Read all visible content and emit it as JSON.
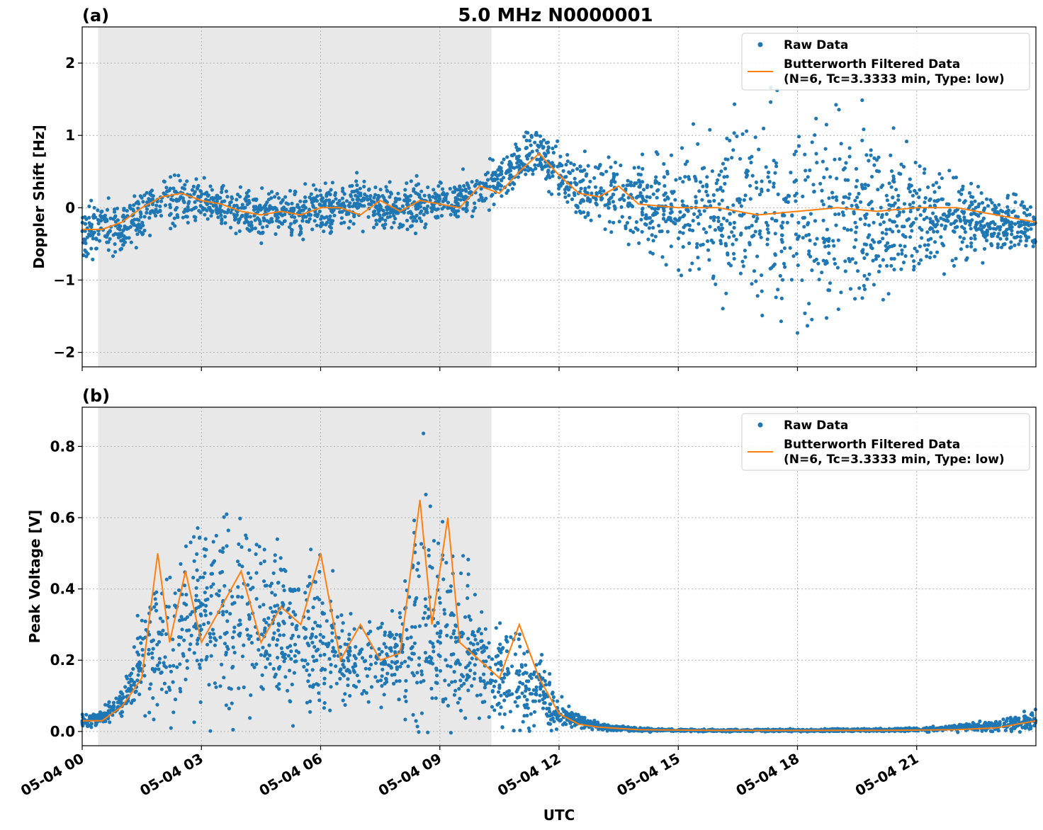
{
  "figure": {
    "title": "5.0 MHz N0000001",
    "xlabel": "UTC",
    "x_ticks": [
      "05-04 00",
      "05-04 03",
      "05-04 06",
      "05-04 09",
      "05-04 12",
      "05-04 15",
      "05-04 18",
      "05-04 21"
    ],
    "colors": {
      "raw": "#1f77b4",
      "filtered": "#ff7f0e",
      "shade": "#e8e8e8",
      "grid": "#b0b0b0"
    }
  },
  "chart_data": [
    {
      "panel": "(a)",
      "type": "scatter",
      "ylabel": "Doppler Shift [Hz]",
      "xlim_hours": [
        0,
        24
      ],
      "ylim": [
        -2.2,
        2.5
      ],
      "y_ticks": [
        2,
        1,
        0,
        -1,
        -2
      ],
      "y_tick_labels": [
        "2",
        "1",
        "0",
        "−1",
        "−2"
      ],
      "shaded_interval_hours": [
        0.4,
        10.3
      ],
      "grid": true,
      "legend_placement": "top-right",
      "legend": [
        "Raw Data",
        "Butterworth Filtered Data",
        "(N=6, Tc=3.3333 min, Type: low)"
      ],
      "series": [
        {
          "name": "Raw Data",
          "style": "points",
          "x_hours": [
            0,
            1,
            2,
            3,
            4,
            5,
            6,
            7,
            8,
            9,
            10,
            11,
            11.5,
            12,
            13,
            14,
            15,
            16,
            17,
            18,
            19,
            20,
            21,
            22,
            23,
            24
          ],
          "y_center": [
            -0.3,
            -0.3,
            0.1,
            0.1,
            -0.1,
            -0.1,
            0.0,
            0.05,
            0.0,
            0.1,
            0.2,
            0.6,
            0.8,
            0.4,
            0.2,
            0.1,
            0.0,
            -0.1,
            -0.1,
            -0.1,
            -0.1,
            -0.1,
            -0.1,
            -0.1,
            -0.2,
            -0.3
          ],
          "y_spread": [
            0.35,
            0.35,
            0.35,
            0.3,
            0.3,
            0.3,
            0.3,
            0.3,
            0.3,
            0.3,
            0.3,
            0.3,
            0.3,
            0.35,
            0.45,
            0.6,
            0.8,
            1.0,
            1.2,
            1.3,
            1.3,
            1.1,
            0.8,
            0.6,
            0.4,
            0.35
          ]
        },
        {
          "name": "Butterworth Filtered Data",
          "style": "line",
          "x_hours": [
            0,
            0.5,
            1,
            1.5,
            2,
            2.5,
            3,
            3.5,
            4,
            4.5,
            5,
            5.5,
            6,
            6.5,
            7,
            7.5,
            8,
            8.5,
            9,
            9.5,
            10,
            10.5,
            11,
            11.5,
            12,
            12.5,
            13,
            13.5,
            14,
            15,
            16,
            17,
            18,
            19,
            20,
            21,
            22,
            23,
            24
          ],
          "y": [
            -0.3,
            -0.3,
            -0.2,
            0.0,
            0.15,
            0.2,
            0.1,
            0.05,
            -0.05,
            -0.1,
            -0.05,
            -0.1,
            0.0,
            0.0,
            -0.1,
            0.1,
            -0.05,
            0.1,
            0.05,
            0.0,
            0.3,
            0.2,
            0.5,
            0.75,
            0.45,
            0.2,
            0.15,
            0.3,
            0.05,
            0.0,
            0.0,
            -0.1,
            -0.05,
            0.0,
            -0.05,
            0.0,
            0.0,
            -0.1,
            -0.2
          ]
        }
      ]
    },
    {
      "panel": "(b)",
      "type": "scatter",
      "ylabel": "Peak Voltage [V]",
      "xlim_hours": [
        0,
        24
      ],
      "ylim": [
        -0.04,
        0.91
      ],
      "y_ticks": [
        0.8,
        0.6,
        0.4,
        0.2,
        0.0
      ],
      "y_tick_labels": [
        "0.8",
        "0.6",
        "0.4",
        "0.2",
        "0.0"
      ],
      "shaded_interval_hours": [
        0.4,
        10.3
      ],
      "grid": true,
      "legend_placement": "top-right",
      "legend": [
        "Raw Data",
        "Butterworth Filtered Data",
        "(N=6, Tc=3.3333 min, Type: low)"
      ],
      "series": [
        {
          "name": "Raw Data",
          "style": "points",
          "x_hours": [
            0,
            0.5,
            1,
            1.5,
            2,
            3,
            4,
            5,
            6,
            7,
            8,
            8.5,
            9,
            10,
            11,
            11.5,
            12,
            12.5,
            13,
            14,
            15,
            18,
            21,
            22,
            23,
            24
          ],
          "y_center": [
            0.03,
            0.04,
            0.08,
            0.2,
            0.25,
            0.32,
            0.32,
            0.3,
            0.25,
            0.2,
            0.2,
            0.35,
            0.3,
            0.2,
            0.15,
            0.12,
            0.05,
            0.03,
            0.015,
            0.005,
            0.003,
            0.003,
            0.005,
            0.01,
            0.015,
            0.03
          ],
          "y_spread": [
            0.02,
            0.02,
            0.04,
            0.12,
            0.2,
            0.25,
            0.25,
            0.22,
            0.2,
            0.12,
            0.12,
            0.35,
            0.25,
            0.15,
            0.15,
            0.1,
            0.04,
            0.02,
            0.01,
            0.005,
            0.003,
            0.003,
            0.005,
            0.01,
            0.02,
            0.03
          ]
        },
        {
          "name": "Butterworth Filtered Data",
          "style": "line",
          "x_hours": [
            0,
            0.5,
            1,
            1.5,
            1.9,
            2.2,
            2.6,
            3,
            3.5,
            4,
            4.5,
            5,
            5.5,
            6,
            6.5,
            7,
            7.5,
            8,
            8.5,
            8.8,
            9.2,
            9.5,
            10,
            10.5,
            11,
            11.5,
            12,
            12.5,
            13,
            14,
            16,
            18,
            20,
            22,
            23,
            24
          ],
          "y": [
            0.03,
            0.03,
            0.07,
            0.15,
            0.5,
            0.25,
            0.45,
            0.25,
            0.35,
            0.45,
            0.25,
            0.35,
            0.3,
            0.5,
            0.2,
            0.3,
            0.2,
            0.22,
            0.65,
            0.3,
            0.6,
            0.25,
            0.2,
            0.15,
            0.3,
            0.15,
            0.05,
            0.02,
            0.012,
            0.005,
            0.003,
            0.003,
            0.003,
            0.005,
            0.01,
            0.03
          ]
        }
      ]
    }
  ]
}
